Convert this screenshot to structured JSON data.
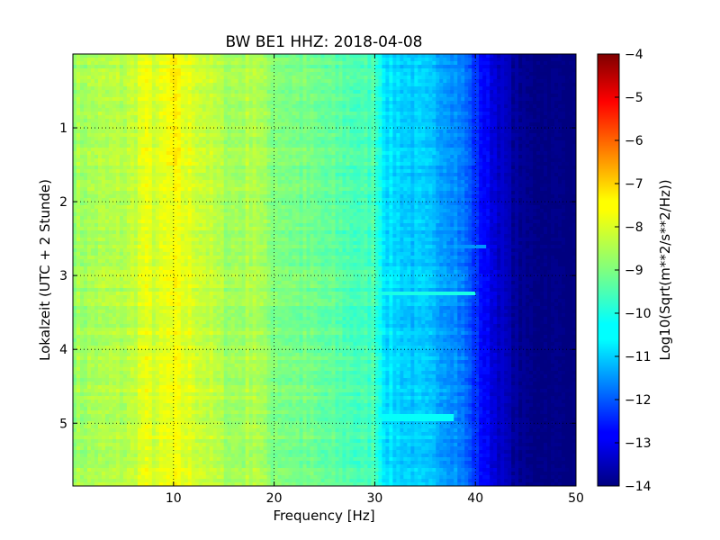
{
  "chart_data": {
    "type": "heatmap",
    "title": "BW BE1 HHZ: 2018-04-08",
    "xlabel": "Frequency [Hz]",
    "ylabel": "Lokalzeit (UTC + 2 Stunde)",
    "xlim": [
      0,
      50
    ],
    "ylim": [
      5.85,
      0
    ],
    "x_ticks": [
      10,
      20,
      30,
      40,
      50
    ],
    "y_ticks": [
      1,
      2,
      3,
      4,
      5
    ],
    "grid": true,
    "colormap": "jet",
    "colorbar": {
      "label": "Log10(Sqrt(m**2/s**2/Hz))",
      "min": -14,
      "max": -4,
      "ticks": [
        -4,
        -5,
        -6,
        -7,
        -8,
        -9,
        -10,
        -11,
        -12,
        -13,
        -14
      ]
    },
    "frequency_profile": {
      "frequency_hz": [
        0,
        2,
        5,
        8,
        10,
        12,
        15,
        18,
        20,
        25,
        28,
        30,
        31,
        33,
        35,
        37,
        38,
        39,
        40,
        41,
        42,
        43,
        44,
        45,
        50
      ],
      "log_amplitude": [
        -8.7,
        -8.6,
        -8.5,
        -8.2,
        -8.0,
        -8.1,
        -8.6,
        -8.7,
        -8.9,
        -9.3,
        -9.5,
        -9.8,
        -10.5,
        -10.7,
        -10.9,
        -11.1,
        -11.3,
        -11.7,
        -12.3,
        -12.8,
        -13.1,
        -13.4,
        -13.7,
        -13.9,
        -14.0
      ]
    },
    "features": [
      {
        "frequency_hz": 10,
        "note": "strong yellow band, highest near 0–1.5 h",
        "log_amplitude": -7.8
      },
      {
        "frequency_hz": 7,
        "note": "yellow vertical stripe",
        "log_amplitude": -8.0
      },
      {
        "frequency_hz": 18,
        "note": "yellow vertical stripe",
        "log_amplitude": -8.4
      },
      {
        "frequency_hz": 30,
        "note": "narrow vertical line",
        "log_amplitude": -9.5
      }
    ],
    "horizontal_events": [
      {
        "time_h": 3.25,
        "freq_range_hz": [
          30,
          40
        ],
        "log_amplitude": -10.0
      },
      {
        "time_h": 4.92,
        "freq_range_hz": [
          30,
          38
        ],
        "log_amplitude": -10.2
      },
      {
        "time_h": 2.6,
        "freq_range_hz": [
          34,
          41
        ],
        "log_amplitude": -11.3
      }
    ]
  }
}
